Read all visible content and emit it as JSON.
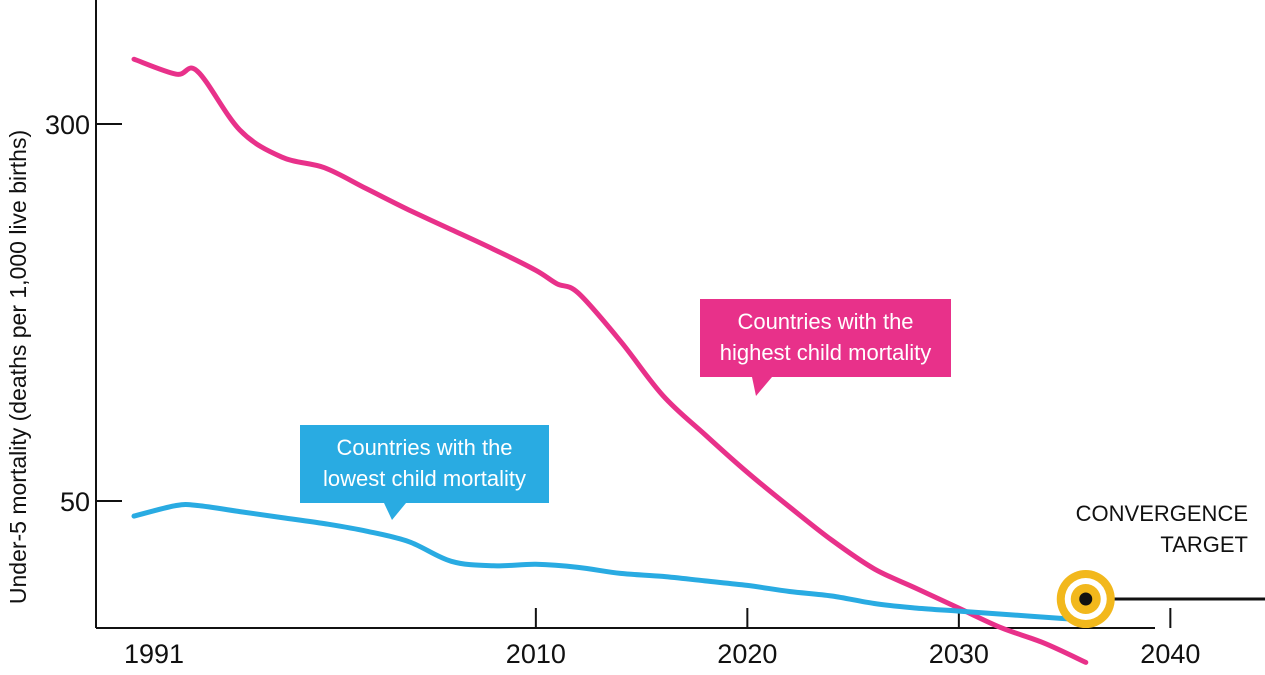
{
  "chart_data": {
    "type": "line",
    "title": "",
    "xlabel": "",
    "ylabel": "Under-5 mortality (deaths per 1,000 live births)",
    "x_ticks": [
      1991,
      2010,
      2020,
      2030,
      2040
    ],
    "y_ticks": [
      300,
      50
    ],
    "grid": false,
    "series": [
      {
        "name": "Countries with the highest child mortality",
        "color": "#e8318a",
        "x": [
          1991,
          1993,
          1994,
          1996,
          1998,
          2000,
          2002,
          2004,
          2006,
          2008,
          2010,
          2011,
          2012,
          2014,
          2016,
          2018,
          2020,
          2022,
          2024,
          2026,
          2028,
          2030,
          2032,
          2034,
          2036
        ],
        "y": [
          343,
          333,
          335,
          296,
          278,
          271,
          257,
          243,
          230,
          217,
          203,
          194,
          188,
          156,
          120,
          94,
          69,
          46,
          24,
          5,
          -8,
          -21,
          -34,
          -44,
          -57
        ]
      },
      {
        "name": "Countries with the lowest child mortality",
        "color": "#29abe2",
        "x": [
          1991,
          1993,
          1994,
          1996,
          1998,
          2000,
          2002,
          2004,
          2006,
          2008,
          2010,
          2012,
          2014,
          2016,
          2018,
          2020,
          2022,
          2024,
          2026,
          2028,
          2030,
          2032,
          2034,
          2036
        ],
        "y": [
          40,
          47,
          47,
          43,
          39,
          35,
          30,
          23,
          10,
          7,
          8,
          6,
          2,
          0,
          -3,
          -6,
          -10,
          -13,
          -18,
          -21,
          -23,
          -25,
          -27,
          -29
        ]
      }
    ],
    "callouts": [
      {
        "series": 0,
        "lines": [
          "Countries with the",
          "highest child mortality"
        ]
      },
      {
        "series": 1,
        "lines": [
          "Countries with the",
          "lowest child mortality"
        ]
      }
    ],
    "target": {
      "lines": [
        "CONVERGENCE",
        "TARGET"
      ],
      "x": 2036,
      "y": -15,
      "ring_color": "#f2b81c",
      "dot_color": "#111111"
    }
  }
}
